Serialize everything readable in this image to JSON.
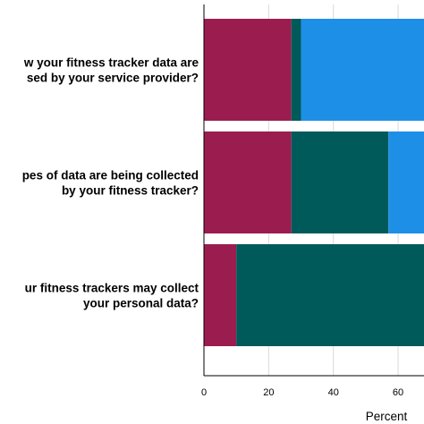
{
  "chart_data": {
    "type": "bar",
    "orientation": "horizontal",
    "stacked": true,
    "xlabel": "Percent",
    "xlim": [
      0,
      68
    ],
    "xticks": [
      0,
      20,
      40,
      60
    ],
    "grid": "vertical",
    "categories": [
      [
        "w your fitness tracker data are",
        "sed by your service provider?"
      ],
      [
        "pes of data are being collected",
        "by your fitness tracker?"
      ],
      [
        "ur fitness trackers may collect",
        "your personal data?"
      ]
    ],
    "series": [
      {
        "color": "#9b1d50",
        "values": [
          27,
          27,
          10
        ]
      },
      {
        "color": "#005a5a",
        "values": [
          3,
          30,
          58
        ]
      },
      {
        "color": "#1e8fe6",
        "values": [
          38,
          11,
          0
        ]
      }
    ]
  }
}
